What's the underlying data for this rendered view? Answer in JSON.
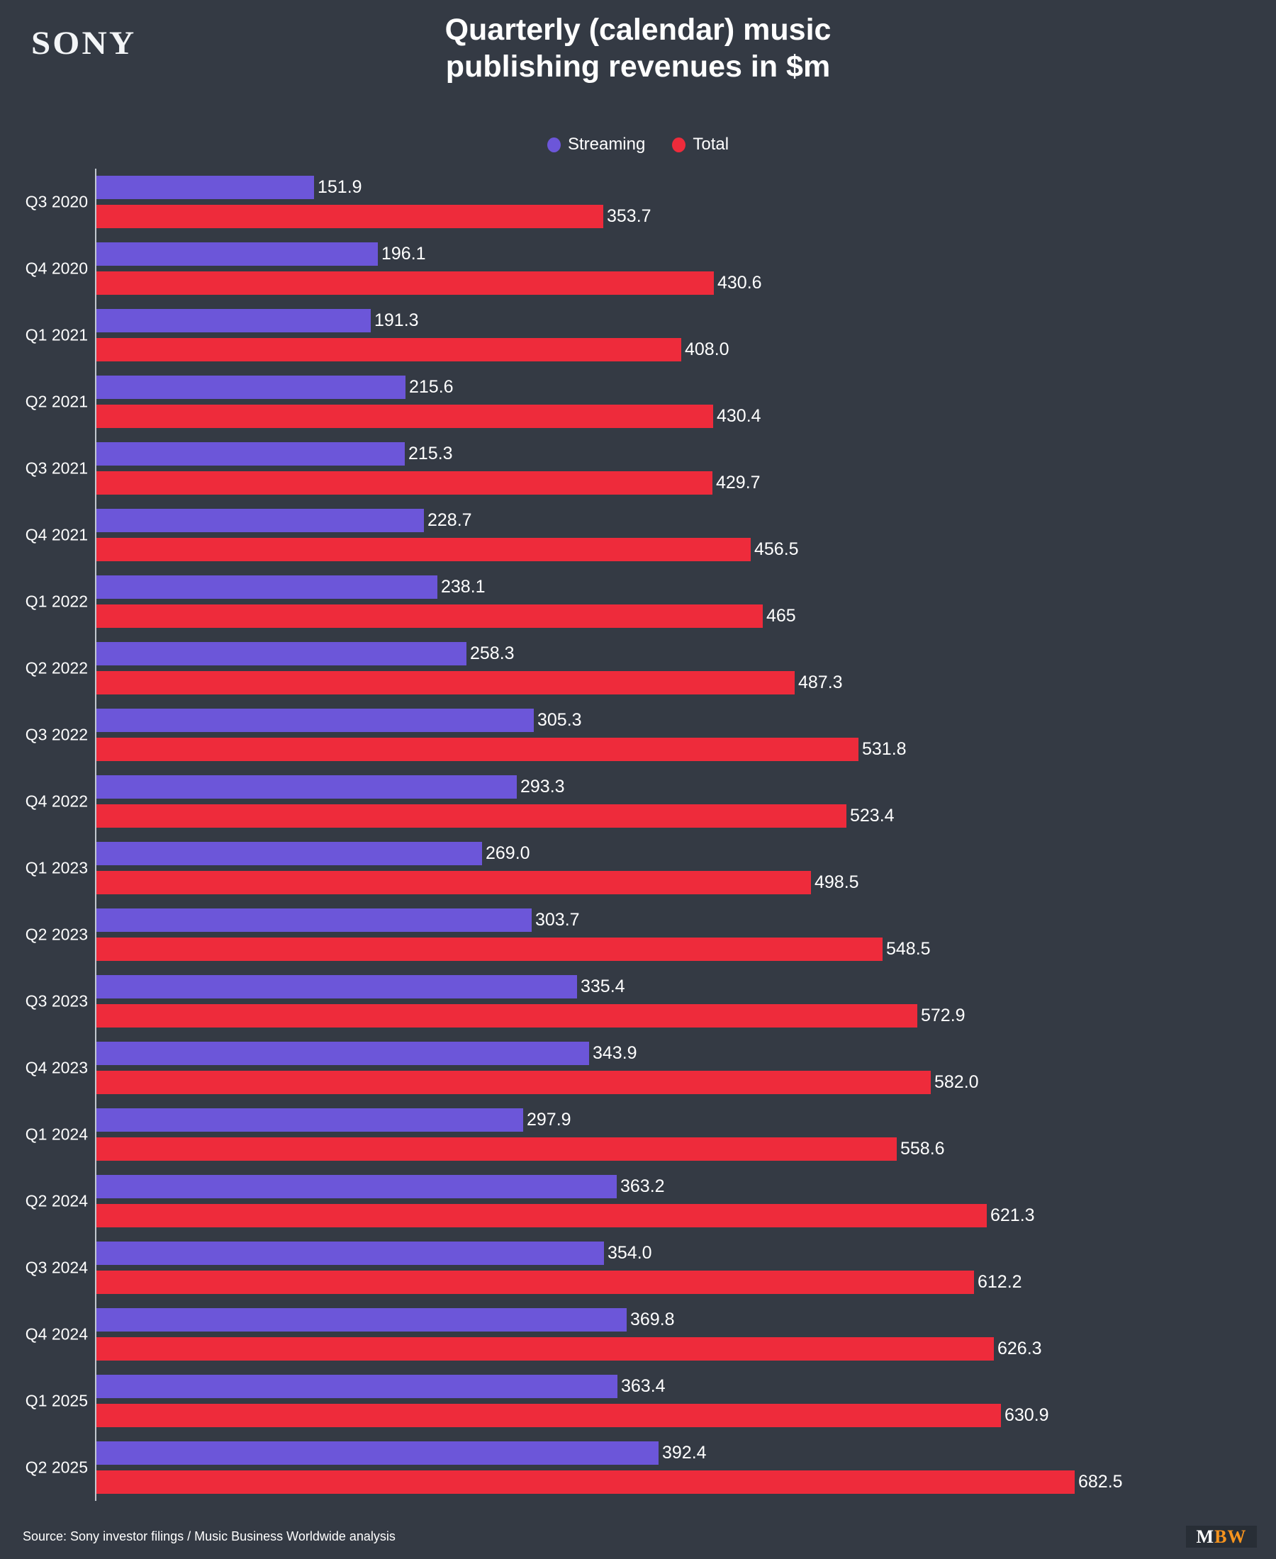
{
  "brand": "SONY",
  "header": {
    "title_line1": "Quarterly (calendar) music",
    "title_line2": "publishing revenues in $m"
  },
  "legend": {
    "items": [
      {
        "label": "Streaming",
        "color": "#6c56d9"
      },
      {
        "label": "Total",
        "color": "#ee2b3b"
      }
    ]
  },
  "chart_data": {
    "type": "bar",
    "orientation": "horizontal",
    "title": "Quarterly (calendar) music publishing revenues in $m",
    "xlabel": "",
    "ylabel": "",
    "xlim": [
      0,
      682.5
    ],
    "grid": false,
    "legend_position": "top-center",
    "categories": [
      "Q3 2020",
      "Q4 2020",
      "Q1 2021",
      "Q2 2021",
      "Q3 2021",
      "Q4 2021",
      "Q1 2022",
      "Q2 2022",
      "Q3 2022",
      "Q4 2022",
      "Q1 2023",
      "Q2 2023",
      "Q3 2023",
      "Q4 2023",
      "Q1 2024",
      "Q2 2024",
      "Q3 2024",
      "Q4 2024",
      "Q1 2025",
      "Q2 2025"
    ],
    "series": [
      {
        "name": "Streaming",
        "color": "#6c56d9",
        "values": [
          151.9,
          196.1,
          191.3,
          215.6,
          215.3,
          228.7,
          238.1,
          258.3,
          305.3,
          293.3,
          269.0,
          303.7,
          335.4,
          343.9,
          297.9,
          363.2,
          354.0,
          369.8,
          363.4,
          392.4
        ],
        "labels": [
          "151.9",
          "196.1",
          "191.3",
          "215.6",
          "215.3",
          "228.7",
          "238.1",
          "258.3",
          "305.3",
          "293.3",
          "269.0",
          "303.7",
          "335.4",
          "343.9",
          "297.9",
          "363.2",
          "354.0",
          "369.8",
          "363.4",
          "392.4"
        ]
      },
      {
        "name": "Total",
        "color": "#ee2b3b",
        "values": [
          353.7,
          430.6,
          408.0,
          430.4,
          429.7,
          456.5,
          465,
          487.3,
          531.8,
          523.4,
          498.5,
          548.5,
          572.9,
          582.0,
          558.6,
          621.3,
          612.2,
          626.3,
          630.9,
          682.5
        ],
        "labels": [
          "353.7",
          "430.6",
          "408.0",
          "430.4",
          "429.7",
          "456.5",
          "465",
          "487.3",
          "531.8",
          "523.4",
          "498.5",
          "548.5",
          "572.9",
          "582.0",
          "558.6",
          "621.3",
          "612.2",
          "626.3",
          "630.9",
          "682.5"
        ]
      }
    ]
  },
  "footer": {
    "source": "Source: Sony investor filings / Music Business Worldwide analysis",
    "mbw_m": "M",
    "mbw_bw": "BW"
  },
  "colors": {
    "background": "#343a44",
    "streaming": "#6c56d9",
    "total": "#ee2b3b",
    "axis": "#c3c9d0",
    "mbw_orange": "#f7941e",
    "mbw_box": "#282e36"
  }
}
